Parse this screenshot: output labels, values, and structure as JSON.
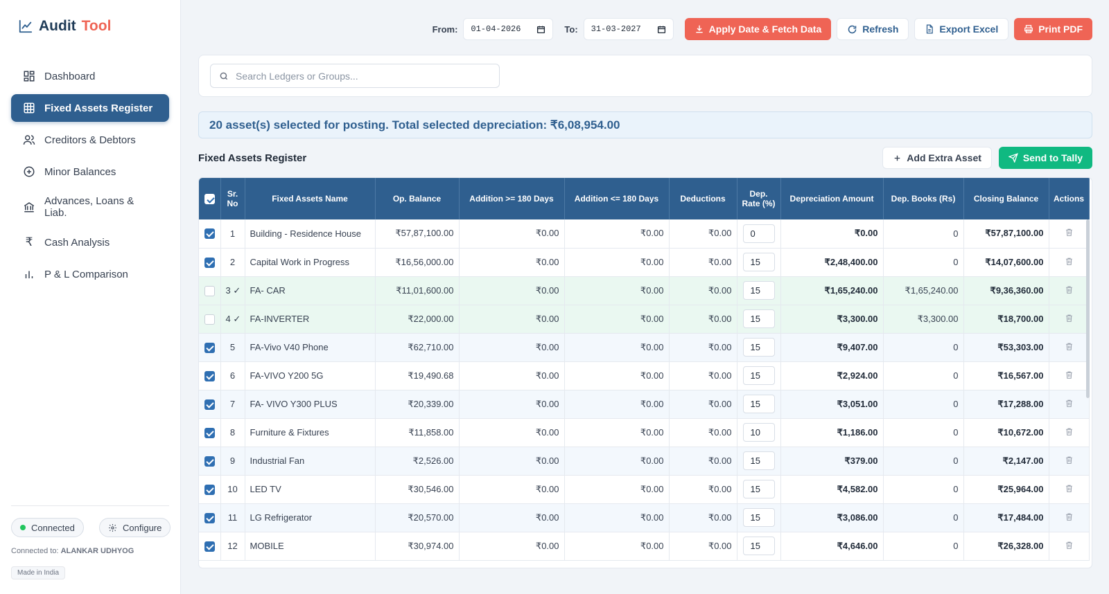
{
  "app": {
    "title_part1": "Audit",
    "title_part2": "Tool"
  },
  "sidebar": {
    "items": [
      {
        "label": "Dashboard",
        "icon": "dashboard-icon",
        "active": false
      },
      {
        "label": "Fixed Assets Register",
        "icon": "grid-icon",
        "active": true
      },
      {
        "label": "Creditors & Debtors",
        "icon": "users-icon",
        "active": false
      },
      {
        "label": "Minor Balances",
        "icon": "plus-circle-icon",
        "active": false
      },
      {
        "label": "Advances, Loans & Liab.",
        "icon": "bank-icon",
        "active": false
      },
      {
        "label": "Cash Analysis",
        "icon": "rupee-icon",
        "active": false
      },
      {
        "label": "P & L Comparison",
        "icon": "bar-chart-icon",
        "active": false
      }
    ],
    "status": "Connected",
    "configure": "Configure",
    "connected_to_label": "Connected to:",
    "connected_to_value": "ALANKAR UDHYOG",
    "made_in": "Made in India"
  },
  "toolbar": {
    "from_label": "From:",
    "from_value": "01-04-2026",
    "to_label": "To:",
    "to_value": "31-03-2027",
    "apply_label": "Apply Date & Fetch Data",
    "refresh_label": "Refresh",
    "export_label": "Export Excel",
    "print_label": "Print PDF"
  },
  "search": {
    "placeholder": "Search Ledgers or Groups..."
  },
  "banner": {
    "text": "20 asset(s) selected for posting. Total selected depreciation: ₹6,08,954.00"
  },
  "register": {
    "title": "Fixed Assets Register",
    "add_label": "Add Extra Asset",
    "send_label": "Send to Tally",
    "columns": [
      "Sr. No",
      "Fixed Assets Name",
      "Op. Balance",
      "Addition >= 180 Days",
      "Addition <= 180 Days",
      "Deductions",
      "Dep. Rate (%)",
      "Depreciation Amount",
      "Dep. Books (Rs)",
      "Closing Balance",
      "Actions"
    ],
    "rows": [
      {
        "sr": "1",
        "name": "Building - Residence House",
        "op": "₹57,87,100.00",
        "add1": "₹0.00",
        "add2": "₹0.00",
        "ded": "₹0.00",
        "rate": "0",
        "dep": "₹0.00",
        "books": "0",
        "close": "₹57,87,100.00",
        "checked": true,
        "posted": false
      },
      {
        "sr": "2",
        "name": "Capital Work in Progress",
        "op": "₹16,56,000.00",
        "add1": "₹0.00",
        "add2": "₹0.00",
        "ded": "₹0.00",
        "rate": "15",
        "dep": "₹2,48,400.00",
        "books": "0",
        "close": "₹14,07,600.00",
        "checked": true,
        "posted": false
      },
      {
        "sr": "3 ✓",
        "name": "FA- CAR",
        "op": "₹11,01,600.00",
        "add1": "₹0.00",
        "add2": "₹0.00",
        "ded": "₹0.00",
        "rate": "15",
        "dep": "₹1,65,240.00",
        "books": "₹1,65,240.00",
        "close": "₹9,36,360.00",
        "checked": false,
        "posted": true
      },
      {
        "sr": "4 ✓",
        "name": "FA-INVERTER",
        "op": "₹22,000.00",
        "add1": "₹0.00",
        "add2": "₹0.00",
        "ded": "₹0.00",
        "rate": "15",
        "dep": "₹3,300.00",
        "books": "₹3,300.00",
        "close": "₹18,700.00",
        "checked": false,
        "posted": true
      },
      {
        "sr": "5",
        "name": "FA-Vivo V40 Phone",
        "op": "₹62,710.00",
        "add1": "₹0.00",
        "add2": "₹0.00",
        "ded": "₹0.00",
        "rate": "15",
        "dep": "₹9,407.00",
        "books": "0",
        "close": "₹53,303.00",
        "checked": true,
        "posted": false
      },
      {
        "sr": "6",
        "name": "FA-VIVO Y200 5G",
        "op": "₹19,490.68",
        "add1": "₹0.00",
        "add2": "₹0.00",
        "ded": "₹0.00",
        "rate": "15",
        "dep": "₹2,924.00",
        "books": "0",
        "close": "₹16,567.00",
        "checked": true,
        "posted": false
      },
      {
        "sr": "7",
        "name": "FA- VIVO Y300 PLUS",
        "op": "₹20,339.00",
        "add1": "₹0.00",
        "add2": "₹0.00",
        "ded": "₹0.00",
        "rate": "15",
        "dep": "₹3,051.00",
        "books": "0",
        "close": "₹17,288.00",
        "checked": true,
        "posted": false
      },
      {
        "sr": "8",
        "name": "Furniture & Fixtures",
        "op": "₹11,858.00",
        "add1": "₹0.00",
        "add2": "₹0.00",
        "ded": "₹0.00",
        "rate": "10",
        "dep": "₹1,186.00",
        "books": "0",
        "close": "₹10,672.00",
        "checked": true,
        "posted": false
      },
      {
        "sr": "9",
        "name": "Industrial Fan",
        "op": "₹2,526.00",
        "add1": "₹0.00",
        "add2": "₹0.00",
        "ded": "₹0.00",
        "rate": "15",
        "dep": "₹379.00",
        "books": "0",
        "close": "₹2,147.00",
        "checked": true,
        "posted": false
      },
      {
        "sr": "10",
        "name": "LED TV",
        "op": "₹30,546.00",
        "add1": "₹0.00",
        "add2": "₹0.00",
        "ded": "₹0.00",
        "rate": "15",
        "dep": "₹4,582.00",
        "books": "0",
        "close": "₹25,964.00",
        "checked": true,
        "posted": false
      },
      {
        "sr": "11",
        "name": "LG Refrigerator",
        "op": "₹20,570.00",
        "add1": "₹0.00",
        "add2": "₹0.00",
        "ded": "₹0.00",
        "rate": "15",
        "dep": "₹3,086.00",
        "books": "0",
        "close": "₹17,484.00",
        "checked": true,
        "posted": false
      },
      {
        "sr": "12",
        "name": "MOBILE",
        "op": "₹30,974.00",
        "add1": "₹0.00",
        "add2": "₹0.00",
        "ded": "₹0.00",
        "rate": "15",
        "dep": "₹4,646.00",
        "books": "0",
        "close": "₹26,328.00",
        "checked": true,
        "posted": false
      }
    ]
  },
  "colors": {
    "primary": "#2f5f8f",
    "accent": "#ef6455",
    "success": "#10b981",
    "posted_row": "#eaf8f1"
  }
}
